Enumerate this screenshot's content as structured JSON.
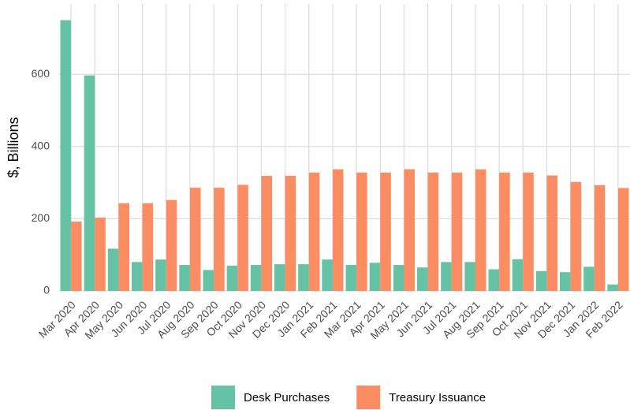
{
  "chart_data": {
    "type": "bar",
    "y_label": "$, Billions",
    "categories": [
      "Mar 2020",
      "Apr 2020",
      "May 2020",
      "Jun 2020",
      "Jul 2020",
      "Aug 2020",
      "Sep 2020",
      "Oct 2020",
      "Nov 2020",
      "Dec 2020",
      "Jan 2021",
      "Feb 2021",
      "Mar 2021",
      "Apr 2021",
      "May 2021",
      "Jun 2021",
      "Jul 2021",
      "Aug 2021",
      "Sep 2021",
      "Oct 2021",
      "Nov 2021",
      "Dec 2021",
      "Jan 2022",
      "Feb 2022"
    ],
    "series": [
      {
        "name": "Desk Purchases",
        "color": "#66c2a5",
        "values": [
          750,
          597,
          117,
          80,
          87,
          72,
          58,
          70,
          72,
          74,
          74,
          87,
          72,
          78,
          72,
          65,
          80,
          80,
          60,
          88,
          55,
          52,
          67,
          18
        ]
      },
      {
        "name": "Treasury Issuance",
        "color": "#fc8d62",
        "values": [
          192,
          203,
          243,
          243,
          252,
          286,
          286,
          294,
          319,
          319,
          328,
          337,
          328,
          328,
          337,
          328,
          328,
          337,
          328,
          328,
          320,
          302,
          293,
          285
        ]
      }
    ],
    "ylim": [
      0,
      795
    ],
    "yticks": [
      0,
      200,
      400,
      600
    ],
    "grid": true,
    "legend": "bottom"
  }
}
